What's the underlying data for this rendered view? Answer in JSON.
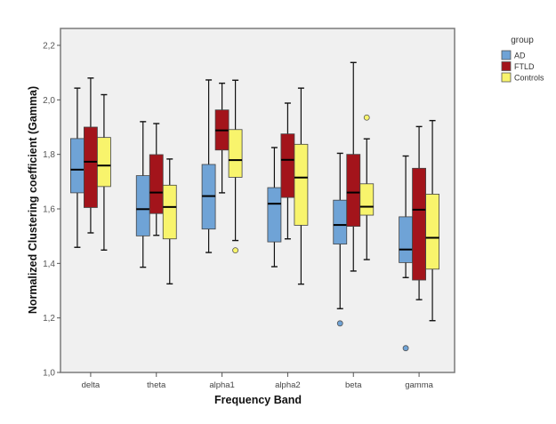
{
  "chart_data": {
    "type": "boxplot",
    "title": "",
    "xlabel": "Frequency Band",
    "ylabel": "Normalized Clustering coefficient (Gamma)",
    "ylim": [
      1.0,
      2.2
    ],
    "yticks": [
      "1,0",
      "1,2",
      "1,4",
      "1,6",
      "1,8",
      "2,0",
      "2,2"
    ],
    "ytick_values": [
      1.0,
      1.2,
      1.4,
      1.6,
      1.8,
      2.0,
      2.2
    ],
    "grid": false,
    "categories": [
      "delta",
      "theta",
      "alpha1",
      "alpha2",
      "beta",
      "gamma"
    ],
    "legend": {
      "title": "group",
      "placement": "top-right outside"
    },
    "series": [
      {
        "name": "AD",
        "color": "#6fa3d6",
        "boxes": [
          {
            "whislo": 1.459,
            "q1": 1.659,
            "med": 1.744,
            "q3": 1.858,
            "whishi": 2.043,
            "outliers": []
          },
          {
            "whislo": 1.386,
            "q1": 1.501,
            "med": 1.599,
            "q3": 1.722,
            "whishi": 1.92,
            "outliers": []
          },
          {
            "whislo": 1.44,
            "q1": 1.526,
            "med": 1.647,
            "q3": 1.763,
            "whishi": 2.073,
            "outliers": []
          },
          {
            "whislo": 1.388,
            "q1": 1.479,
            "med": 1.619,
            "q3": 1.678,
            "whishi": 1.825,
            "outliers": []
          },
          {
            "whislo": 1.234,
            "q1": 1.471,
            "med": 1.541,
            "q3": 1.632,
            "whishi": 1.804,
            "outliers": [
              1.18
            ]
          },
          {
            "whislo": 1.348,
            "q1": 1.403,
            "med": 1.451,
            "q3": 1.571,
            "whishi": 1.794,
            "outliers": [
              1.089
            ]
          }
        ]
      },
      {
        "name": "FTLD",
        "color": "#a3141b",
        "boxes": [
          {
            "whislo": 1.512,
            "q1": 1.605,
            "med": 1.773,
            "q3": 1.9,
            "whishi": 2.08,
            "outliers": []
          },
          {
            "whislo": 1.503,
            "q1": 1.583,
            "med": 1.66,
            "q3": 1.799,
            "whishi": 1.913,
            "outliers": []
          },
          {
            "whislo": 1.659,
            "q1": 1.816,
            "med": 1.888,
            "q3": 1.963,
            "whishi": 2.061,
            "outliers": []
          },
          {
            "whislo": 1.49,
            "q1": 1.642,
            "med": 1.78,
            "q3": 1.875,
            "whishi": 1.988,
            "outliers": []
          },
          {
            "whislo": 1.372,
            "q1": 1.536,
            "med": 1.66,
            "q3": 1.8,
            "whishi": 2.137,
            "outliers": []
          },
          {
            "whislo": 1.267,
            "q1": 1.339,
            "med": 1.597,
            "q3": 1.749,
            "whishi": 1.902,
            "outliers": []
          }
        ]
      },
      {
        "name": "Controls",
        "color": "#f8f46c",
        "boxes": [
          {
            "whislo": 1.449,
            "q1": 1.682,
            "med": 1.759,
            "q3": 1.862,
            "whishi": 2.019,
            "outliers": []
          },
          {
            "whislo": 1.325,
            "q1": 1.49,
            "med": 1.607,
            "q3": 1.687,
            "whishi": 1.783,
            "outliers": []
          },
          {
            "whislo": 1.484,
            "q1": 1.716,
            "med": 1.779,
            "q3": 1.891,
            "whishi": 2.072,
            "outliers": [
              1.448
            ]
          },
          {
            "whislo": 1.324,
            "q1": 1.54,
            "med": 1.715,
            "q3": 1.837,
            "whishi": 2.043,
            "outliers": []
          },
          {
            "whislo": 1.414,
            "q1": 1.577,
            "med": 1.608,
            "q3": 1.692,
            "whishi": 1.857,
            "outliers": [
              1.935
            ]
          },
          {
            "whislo": 1.19,
            "q1": 1.379,
            "med": 1.494,
            "q3": 1.654,
            "whishi": 1.924,
            "outliers": []
          }
        ]
      }
    ]
  }
}
